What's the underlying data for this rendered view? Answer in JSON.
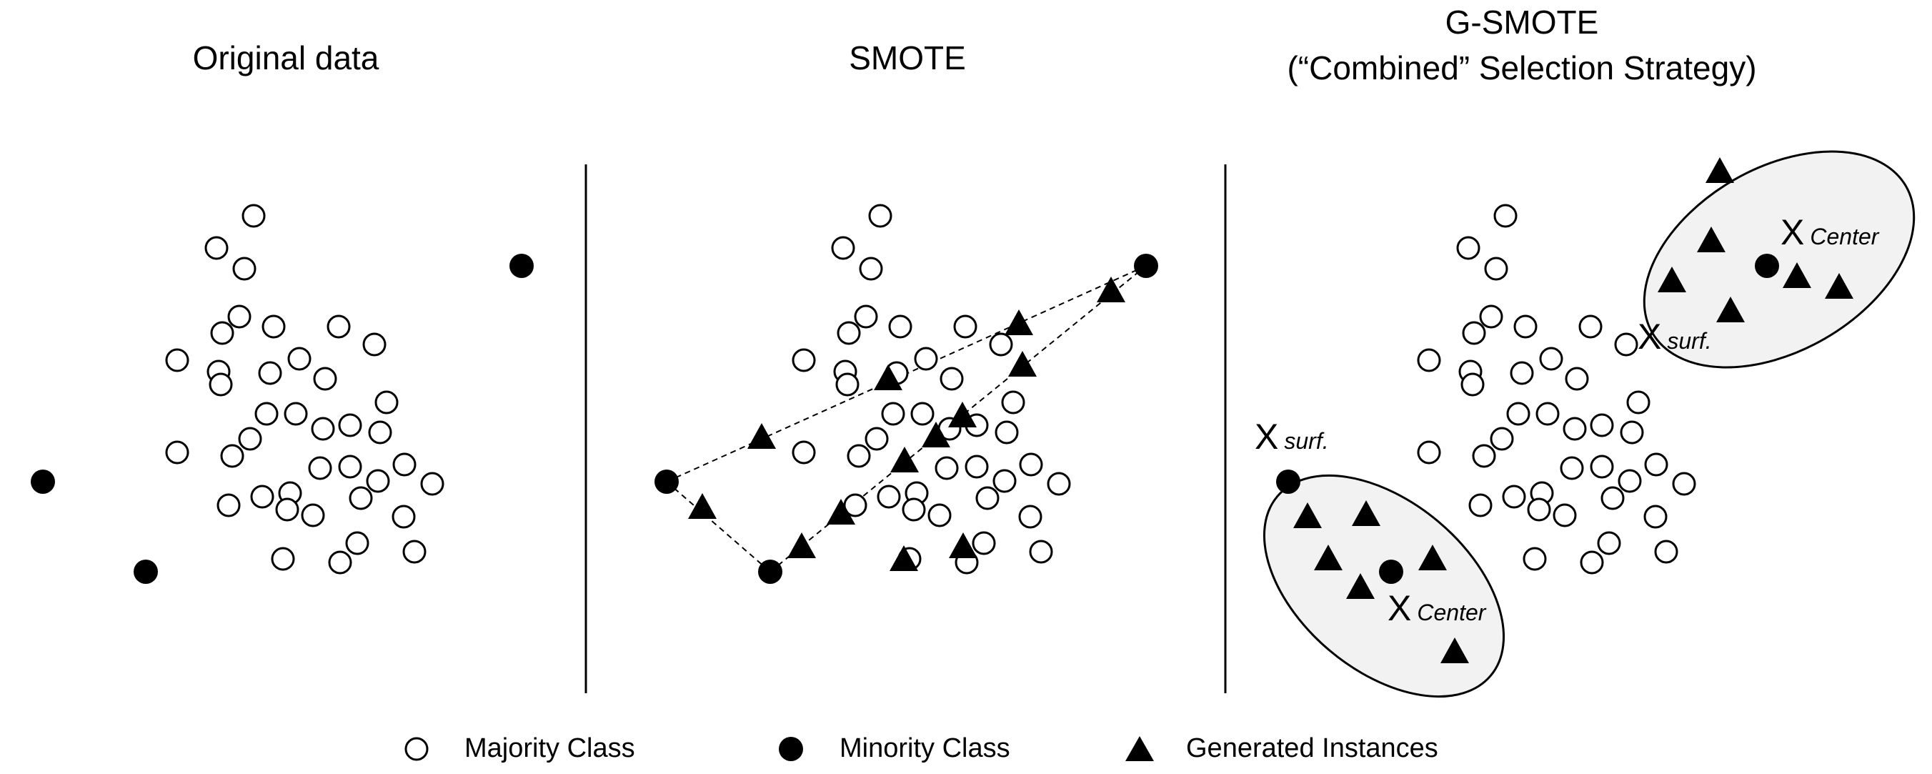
{
  "panels": {
    "original": {
      "title": "Original data"
    },
    "smote": {
      "title": "SMOTE"
    },
    "gsmote": {
      "title_line1": "G-SMOTE",
      "title_line2": "(“Combined” Selection Strategy)",
      "labels": {
        "x": "X",
        "center": "Center",
        "surf": "surf."
      }
    }
  },
  "legend": {
    "majority": "Majority Class",
    "minority": "Minority Class",
    "generated": "Generated Instances"
  },
  "colors": {
    "ink": "#000000",
    "ellipse_fill": "#f2f2f2"
  }
}
